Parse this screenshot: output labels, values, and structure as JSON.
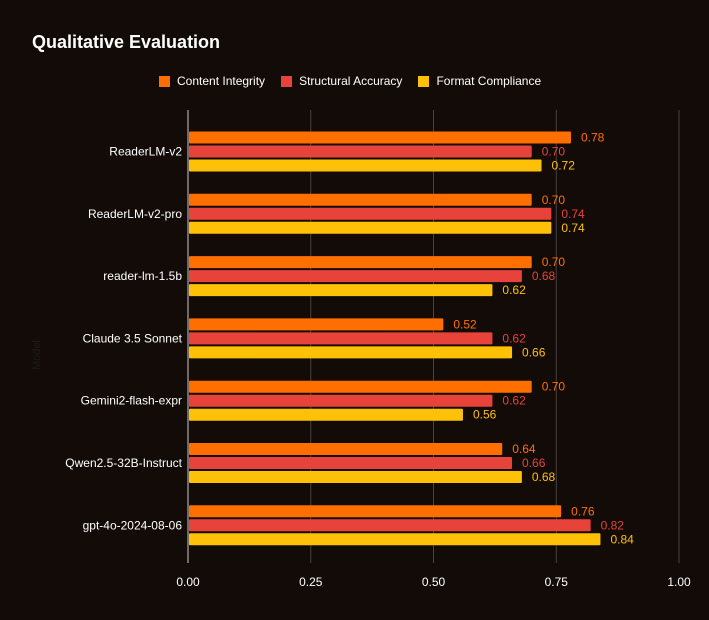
{
  "chart_data": {
    "type": "bar",
    "orientation": "horizontal",
    "title": "Qualitative Evaluation",
    "ylabel": "Model",
    "xlabel": "",
    "xlim": [
      0,
      1
    ],
    "xticks": [
      "0.00",
      "0.25",
      "0.50",
      "0.75",
      "1.00"
    ],
    "grid": true,
    "legend_position": "top",
    "categories": [
      "ReaderLM-v2",
      "ReaderLM-v2-pro",
      "reader-lm-1.5b",
      "Claude 3.5 Sonnet",
      "Gemini2-flash-expr",
      "Qwen2.5-32B-Instruct",
      "gpt-4o-2024-08-06"
    ],
    "series": [
      {
        "name": "Content Integrity",
        "color": "#ff6f00",
        "values": [
          0.78,
          0.7,
          0.7,
          0.52,
          0.7,
          0.64,
          0.76
        ],
        "labels": [
          "0.78",
          "0.70",
          "0.70",
          "0.52",
          "0.70",
          "0.64",
          "0.76"
        ]
      },
      {
        "name": "Structural Accuracy",
        "color": "#e8433a",
        "values": [
          0.7,
          0.74,
          0.68,
          0.62,
          0.62,
          0.66,
          0.82
        ],
        "labels": [
          "0.70",
          "0.74",
          "0.68",
          "0.62",
          "0.62",
          "0.66",
          "0.82"
        ]
      },
      {
        "name": "Format Compliance",
        "color": "#ffc107",
        "values": [
          0.72,
          0.74,
          0.62,
          0.66,
          0.56,
          0.68,
          0.84
        ],
        "labels": [
          "0.72",
          "0.74",
          "0.62",
          "0.66",
          "0.56",
          "0.68",
          "0.84"
        ]
      }
    ]
  }
}
